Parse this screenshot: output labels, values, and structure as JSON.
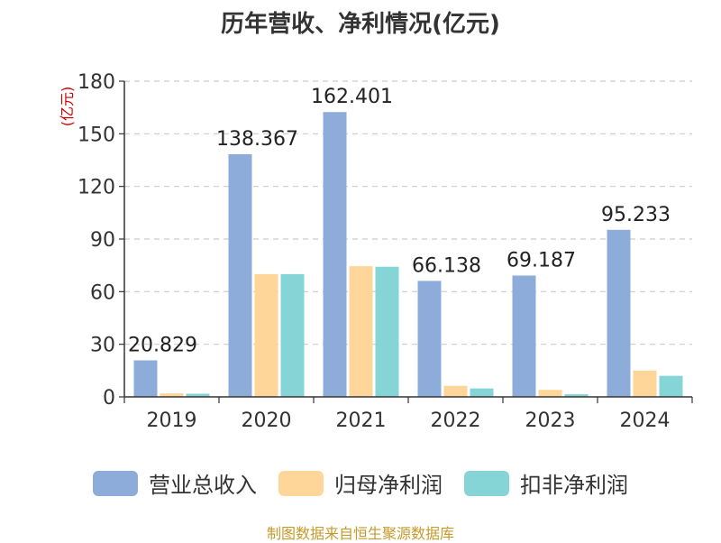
{
  "chart_data": {
    "type": "bar",
    "title": "历年营收、净利情况(亿元)",
    "ylabel": "(亿元)",
    "categories": [
      "2019",
      "2020",
      "2021",
      "2022",
      "2023",
      "2024"
    ],
    "ylim": [
      0,
      180
    ],
    "yticks": [
      0,
      30,
      60,
      90,
      120,
      150,
      180
    ],
    "grid": true,
    "legend_position": "bottom",
    "series": [
      {
        "name": "营业总收入",
        "color": "#8eacda",
        "values": [
          20.829,
          138.367,
          162.401,
          66.138,
          69.187,
          95.233
        ]
      },
      {
        "name": "归母净利润",
        "color": "#ffd699",
        "values": [
          2.0,
          70.0,
          74.5,
          6.3,
          4.0,
          15.0
        ]
      },
      {
        "name": "扣非净利润",
        "color": "#85d4d6",
        "values": [
          1.8,
          70.0,
          74.2,
          4.8,
          1.5,
          12.0
        ]
      }
    ],
    "data_labels": [
      "20.829",
      "138.367",
      "162.401",
      "66.138",
      "69.187",
      "95.233"
    ]
  },
  "source_note": "制图数据来自恒生聚源数据库"
}
